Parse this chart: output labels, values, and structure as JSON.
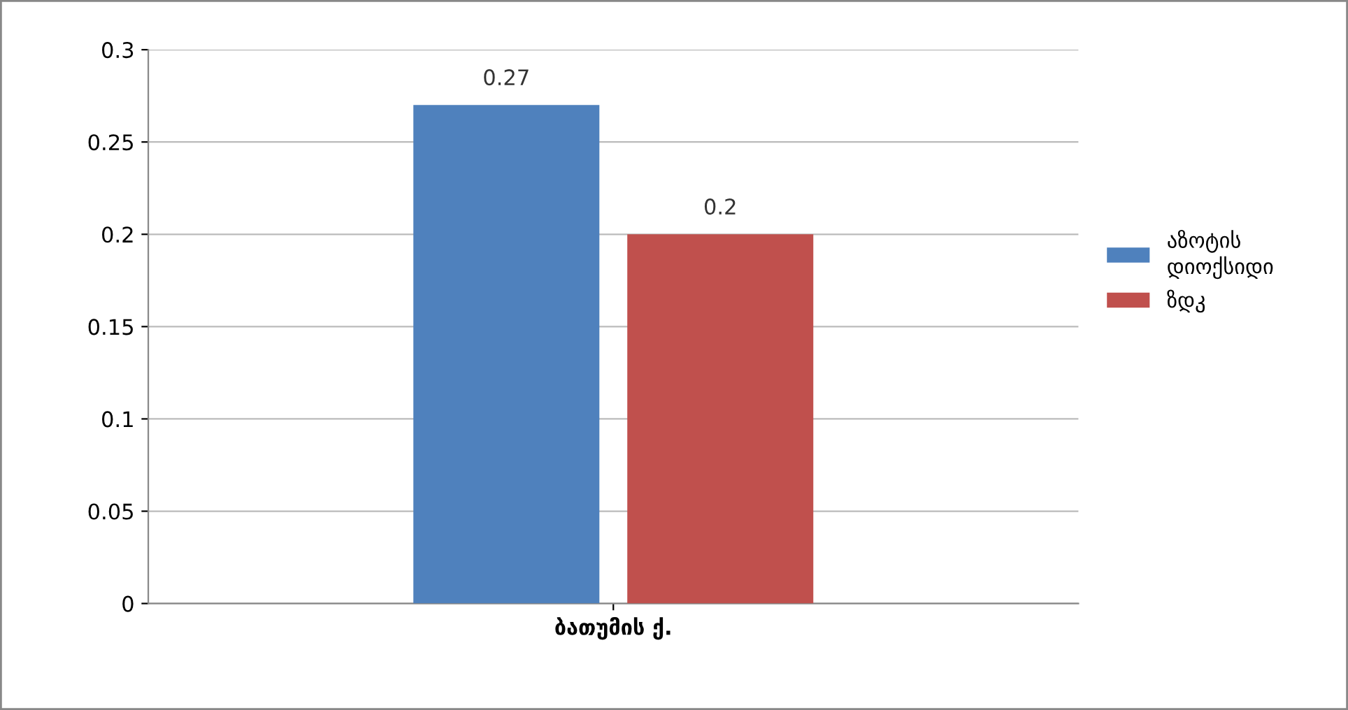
{
  "chart_data": {
    "type": "bar",
    "categories": [
      "ბათუმის ქ."
    ],
    "series": [
      {
        "name": "აზოტის\nდიოქსიდი",
        "color": "#4f81bd",
        "values": [
          0.27
        ]
      },
      {
        "name": "ზდკ",
        "color": "#c0504d",
        "values": [
          0.2
        ]
      }
    ],
    "ylim": [
      0,
      0.3
    ],
    "yticks": [
      0,
      0.05,
      0.1,
      0.15,
      0.2,
      0.25,
      0.3
    ],
    "grid": "y",
    "legend": "right",
    "data_labels": true
  }
}
